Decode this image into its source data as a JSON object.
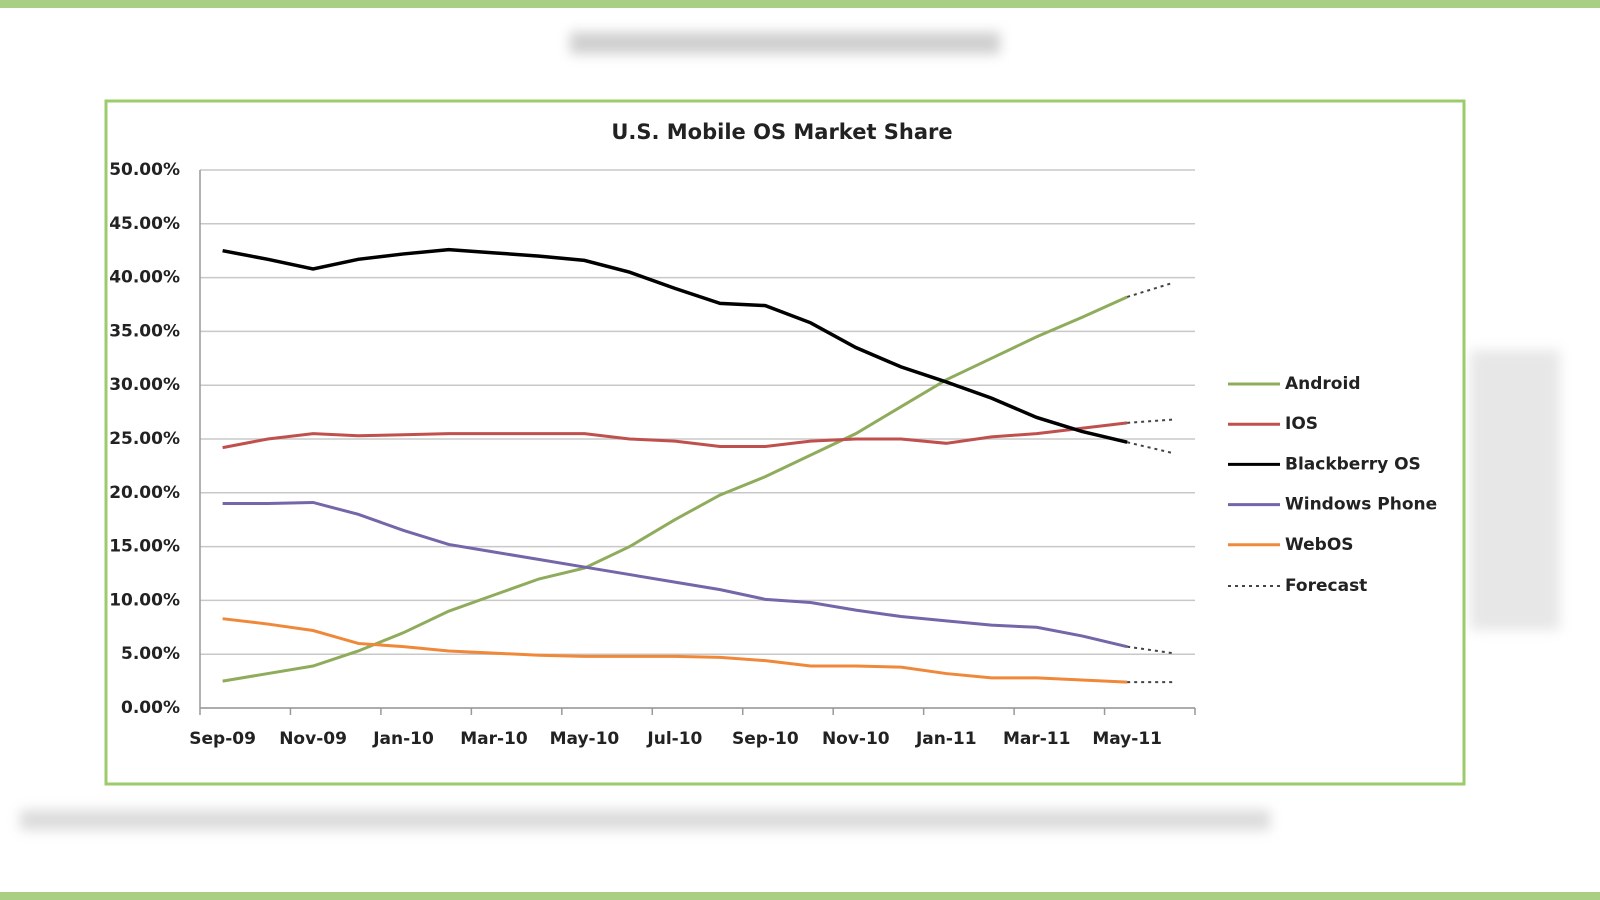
{
  "chart_data": {
    "type": "line",
    "title": "U.S. Mobile OS Market Share",
    "categories": [
      "Sep-09",
      null,
      "Nov-09",
      null,
      "Jan-10",
      null,
      "Mar-10",
      null,
      "May-10",
      null,
      "Jul-10",
      null,
      "Sep-10",
      null,
      "Nov-10",
      null,
      "Jan-11",
      null,
      "Mar-11",
      null,
      "May-11",
      null
    ],
    "series": [
      {
        "name": "Android",
        "color": "#8fac5c",
        "values": [
          2.5,
          3.2,
          3.9,
          5.3,
          7.0,
          9.0,
          10.5,
          12.0,
          13.0,
          15.0,
          17.5,
          19.8,
          21.5,
          23.5,
          25.5,
          28.0,
          30.5,
          32.5,
          34.5,
          36.3,
          38.2,
          null
        ],
        "forecast": [
          null,
          null,
          null,
          null,
          null,
          null,
          null,
          null,
          null,
          null,
          null,
          null,
          null,
          null,
          null,
          null,
          null,
          null,
          null,
          null,
          38.2,
          39.5
        ]
      },
      {
        "name": "IOS",
        "color": "#c0504d",
        "values": [
          24.2,
          25.0,
          25.5,
          25.3,
          25.4,
          25.5,
          25.5,
          25.5,
          25.5,
          25.0,
          24.8,
          24.3,
          24.3,
          24.8,
          25.0,
          25.0,
          24.6,
          25.2,
          25.5,
          26.0,
          26.5,
          null
        ],
        "forecast": [
          null,
          null,
          null,
          null,
          null,
          null,
          null,
          null,
          null,
          null,
          null,
          null,
          null,
          null,
          null,
          null,
          null,
          null,
          null,
          null,
          26.5,
          26.8
        ]
      },
      {
        "name": "Blackberry OS",
        "color": "#000000",
        "values": [
          42.5,
          41.7,
          40.8,
          41.7,
          42.2,
          42.6,
          42.3,
          42.0,
          41.6,
          40.5,
          39.0,
          37.6,
          37.4,
          35.8,
          33.5,
          31.7,
          30.3,
          28.8,
          27.0,
          25.7,
          24.7,
          null
        ],
        "forecast": [
          null,
          null,
          null,
          null,
          null,
          null,
          null,
          null,
          null,
          null,
          null,
          null,
          null,
          null,
          null,
          null,
          null,
          null,
          null,
          null,
          24.7,
          23.7
        ]
      },
      {
        "name": "Windows Phone",
        "color": "#7466a8",
        "values": [
          19.0,
          19.0,
          19.1,
          18.0,
          16.5,
          15.2,
          14.5,
          13.8,
          13.1,
          12.4,
          11.7,
          11.0,
          10.1,
          9.8,
          9.1,
          8.5,
          8.1,
          7.7,
          7.5,
          6.7,
          5.7,
          null
        ],
        "forecast": [
          null,
          null,
          null,
          null,
          null,
          null,
          null,
          null,
          null,
          null,
          null,
          null,
          null,
          null,
          null,
          null,
          null,
          null,
          null,
          null,
          5.7,
          5.1
        ]
      },
      {
        "name": "WebOS",
        "color": "#f0883a",
        "values": [
          8.3,
          7.8,
          7.2,
          6.0,
          5.7,
          5.3,
          5.1,
          4.9,
          4.8,
          4.8,
          4.8,
          4.7,
          4.4,
          3.9,
          3.9,
          3.8,
          3.2,
          2.8,
          2.8,
          2.6,
          2.4,
          null
        ],
        "forecast": [
          null,
          null,
          null,
          null,
          null,
          null,
          null,
          null,
          null,
          null,
          null,
          null,
          null,
          null,
          null,
          null,
          null,
          null,
          null,
          null,
          2.4,
          2.4
        ]
      }
    ],
    "forecast_legend": "Forecast",
    "ylim": [
      0,
      50
    ],
    "yticks": [
      {
        "value": 0,
        "label": "0.00%"
      },
      {
        "value": 5,
        "label": "5.00%"
      },
      {
        "value": 10,
        "label": "10.00%"
      },
      {
        "value": 15,
        "label": "15.00%"
      },
      {
        "value": 20,
        "label": "20.00%"
      },
      {
        "value": 25,
        "label": "25.00%"
      },
      {
        "value": 30,
        "label": "30.00%"
      },
      {
        "value": 35,
        "label": "35.00%"
      },
      {
        "value": 40,
        "label": "40.00%"
      },
      {
        "value": 45,
        "label": "45.00%"
      },
      {
        "value": 50,
        "label": "50.00%"
      }
    ],
    "grid": true,
    "legend": "right"
  }
}
